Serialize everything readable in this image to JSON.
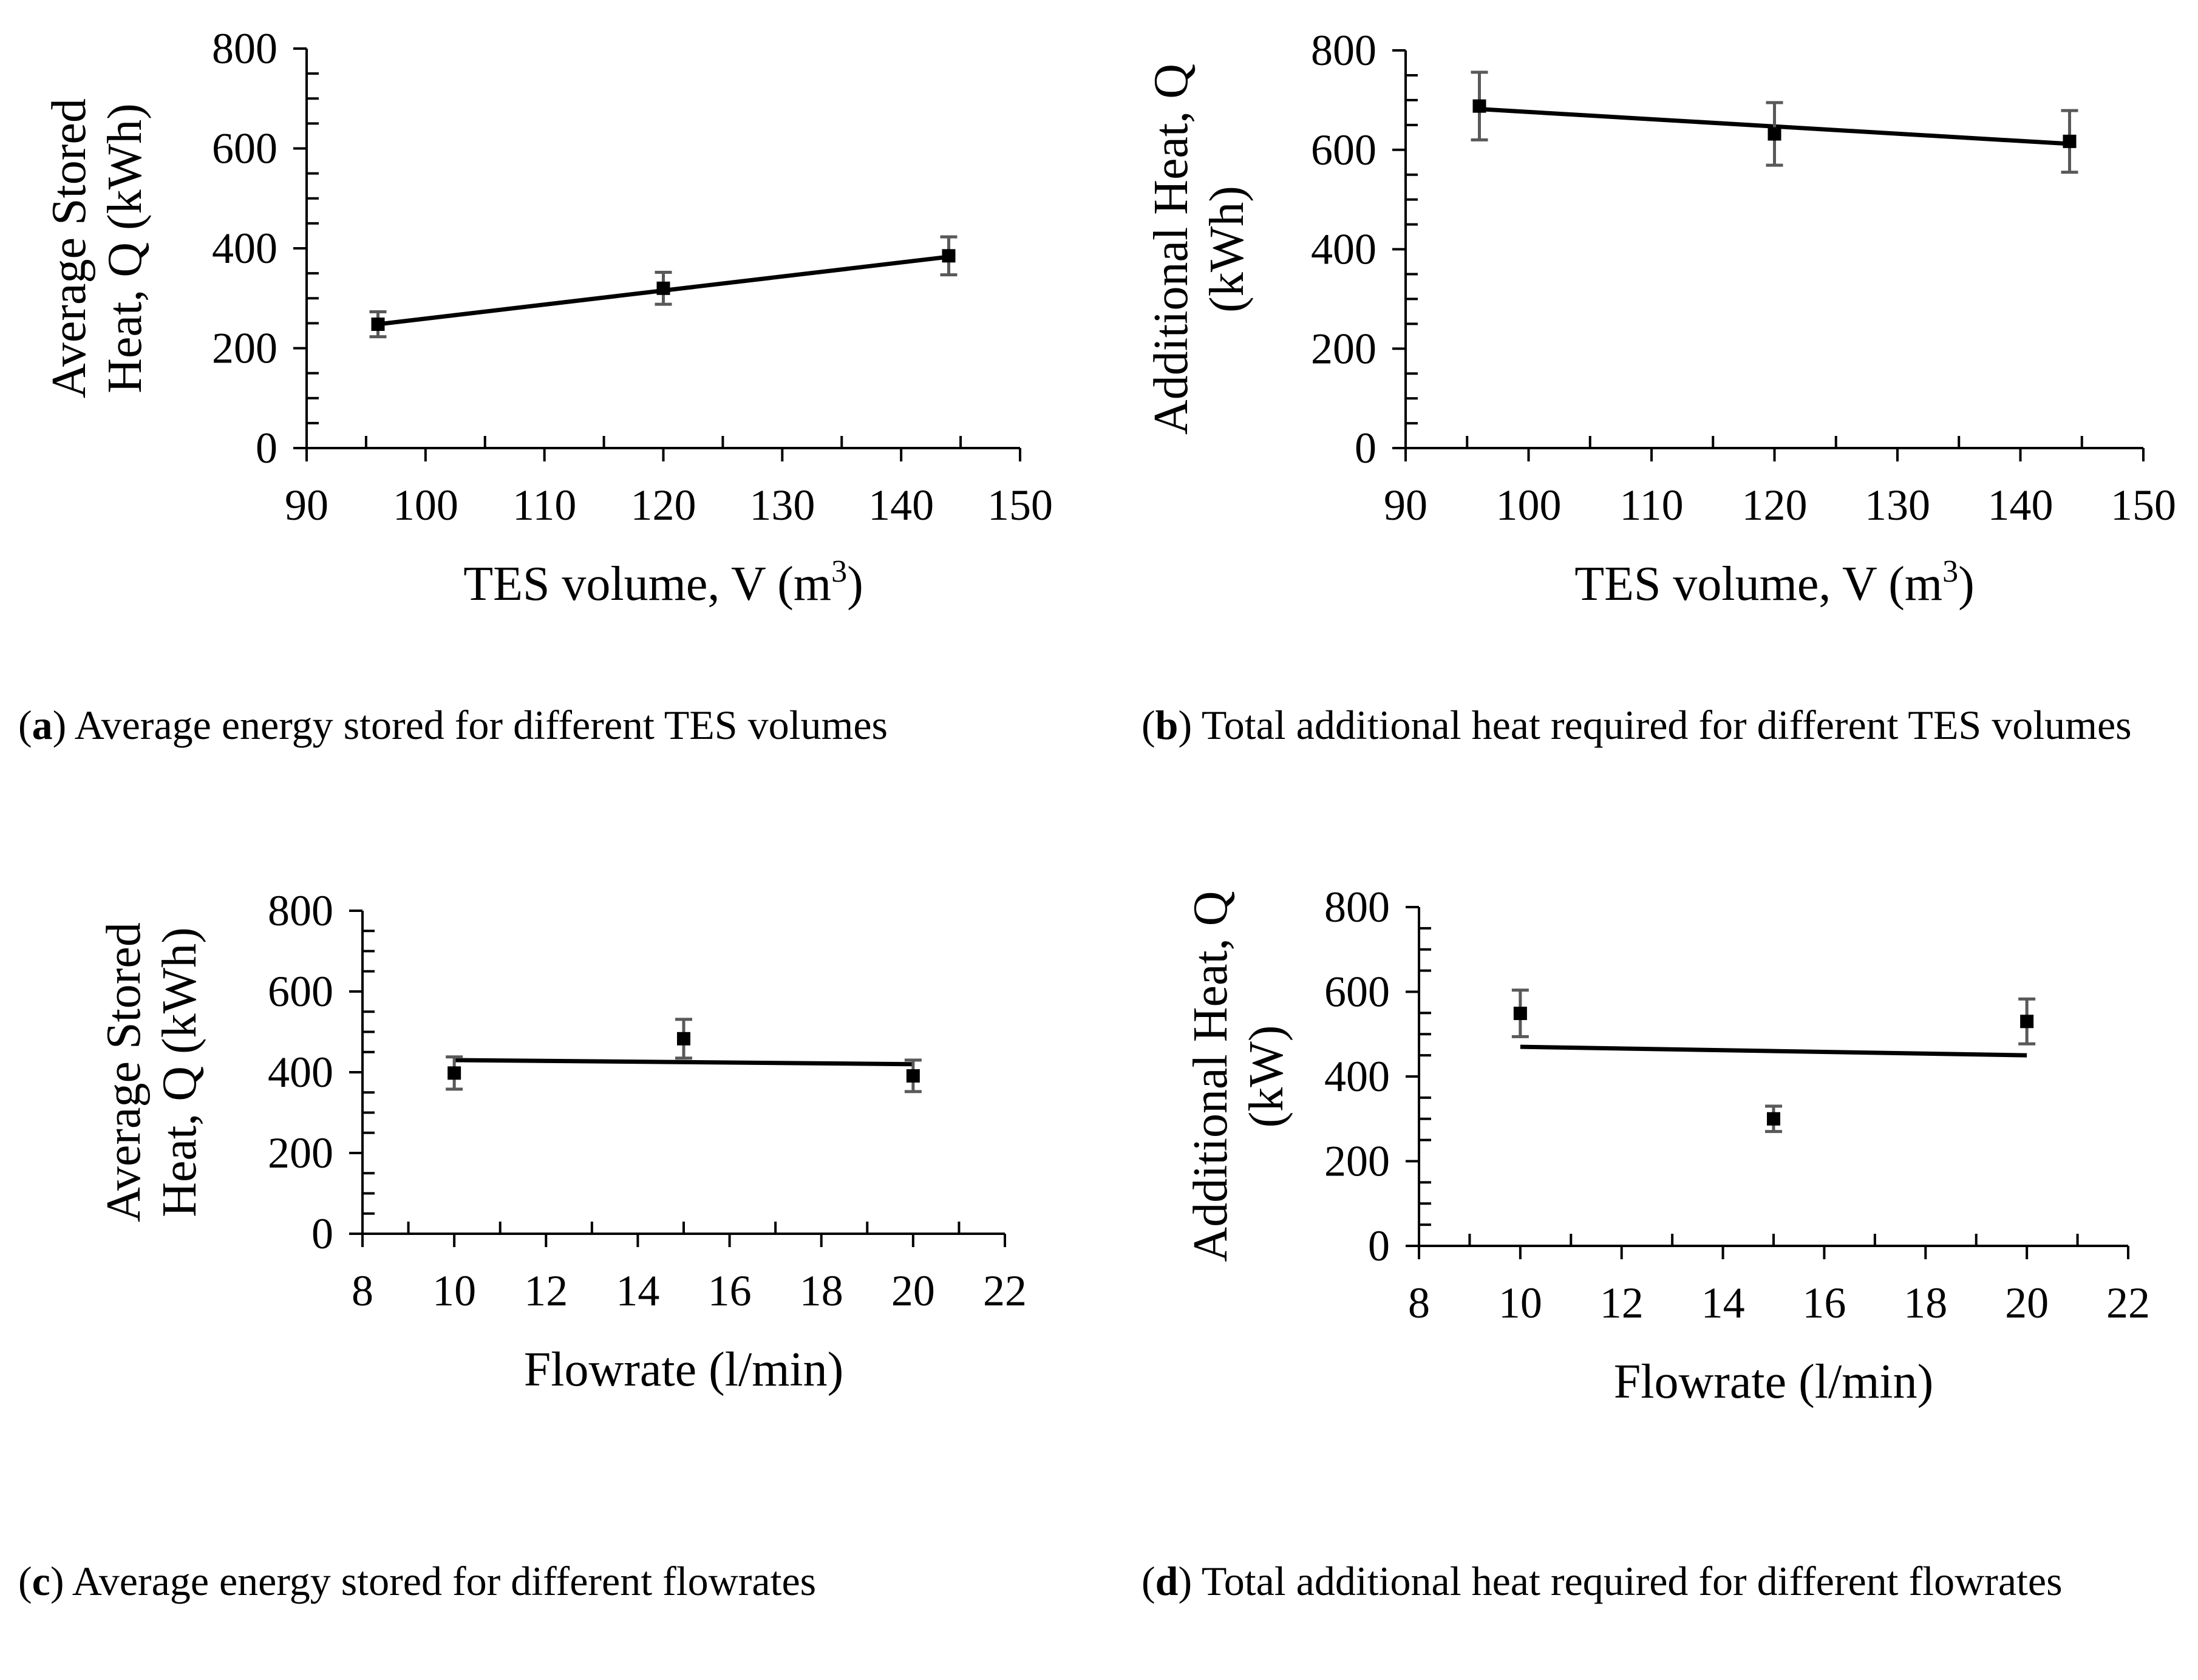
{
  "chart_data": [
    {
      "id": "a",
      "type": "scatter",
      "x": [
        96,
        120,
        144
      ],
      "y": [
        248,
        320,
        385
      ],
      "y_err": [
        25,
        32,
        38
      ],
      "trendline": {
        "x": [
          96,
          144
        ],
        "y": [
          248,
          383
        ]
      },
      "xlim": [
        90,
        150
      ],
      "ylim": [
        0,
        800
      ],
      "xticks": [
        "90",
        "100",
        "110",
        "120",
        "130",
        "140",
        "150"
      ],
      "yticks": [
        "0",
        "200",
        "400",
        "600",
        "800"
      ],
      "xlabel": "TES volume, V (m",
      "xlabel_sup": "3",
      "xlabel_end": ")",
      "ylabel_lines": [
        "Average Stored",
        "Heat, Q (kWh)"
      ],
      "caption_letter": "a",
      "caption_text": "Average energy stored for different TES volumes"
    },
    {
      "id": "b",
      "type": "scatter",
      "x": [
        96,
        120,
        144
      ],
      "y": [
        688,
        632,
        617
      ],
      "y_err": [
        68,
        63,
        62
      ],
      "trendline": {
        "x": [
          96,
          144
        ],
        "y": [
          682,
          612
        ]
      },
      "xlim": [
        90,
        150
      ],
      "ylim": [
        0,
        800
      ],
      "xticks": [
        "90",
        "100",
        "110",
        "120",
        "130",
        "140",
        "150"
      ],
      "yticks": [
        "0",
        "200",
        "400",
        "600",
        "800"
      ],
      "xlabel": "TES volume, V (m",
      "xlabel_sup": "3",
      "xlabel_end": ")",
      "ylabel_lines": [
        "Additional Heat, Q",
        "(kWh)"
      ],
      "caption_letter": "b",
      "caption_text": "Total additional heat required for different TES volumes"
    },
    {
      "id": "c",
      "type": "scatter",
      "x": [
        10,
        15,
        20
      ],
      "y": [
        398,
        483,
        391
      ],
      "y_err": [
        40,
        48,
        39
      ],
      "trendline": {
        "x": [
          10,
          20
        ],
        "y": [
          430,
          420
        ]
      },
      "xlim": [
        8,
        22
      ],
      "ylim": [
        0,
        800
      ],
      "xticks": [
        "8",
        "10",
        "12",
        "14",
        "16",
        "18",
        "20",
        "22"
      ],
      "yticks": [
        "0",
        "200",
        "400",
        "600",
        "800"
      ],
      "xlabel": "Flowrate (l/min)",
      "xlabel_sup": "",
      "xlabel_end": "",
      "ylabel_lines": [
        "Average Stored",
        "Heat, Q (kWh)"
      ],
      "caption_letter": "c",
      "caption_text": "Average energy stored for different flowrates"
    },
    {
      "id": "d",
      "type": "scatter",
      "x": [
        10,
        15,
        20
      ],
      "y": [
        549,
        300,
        530
      ],
      "y_err": [
        55,
        30,
        53
      ],
      "trendline": {
        "x": [
          10,
          20
        ],
        "y": [
          470,
          450
        ]
      },
      "xlim": [
        8,
        22
      ],
      "ylim": [
        0,
        800
      ],
      "xticks": [
        "8",
        "10",
        "12",
        "14",
        "16",
        "18",
        "20",
        "22"
      ],
      "yticks": [
        "0",
        "200",
        "400",
        "600",
        "800"
      ],
      "xlabel": "Flowrate (l/min)",
      "xlabel_sup": "",
      "xlabel_end": "",
      "ylabel_lines": [
        "Additional Heat, Q",
        "(kW)"
      ],
      "caption_letter": "d",
      "caption_text": "Total additional heat required for different flowrates"
    }
  ]
}
